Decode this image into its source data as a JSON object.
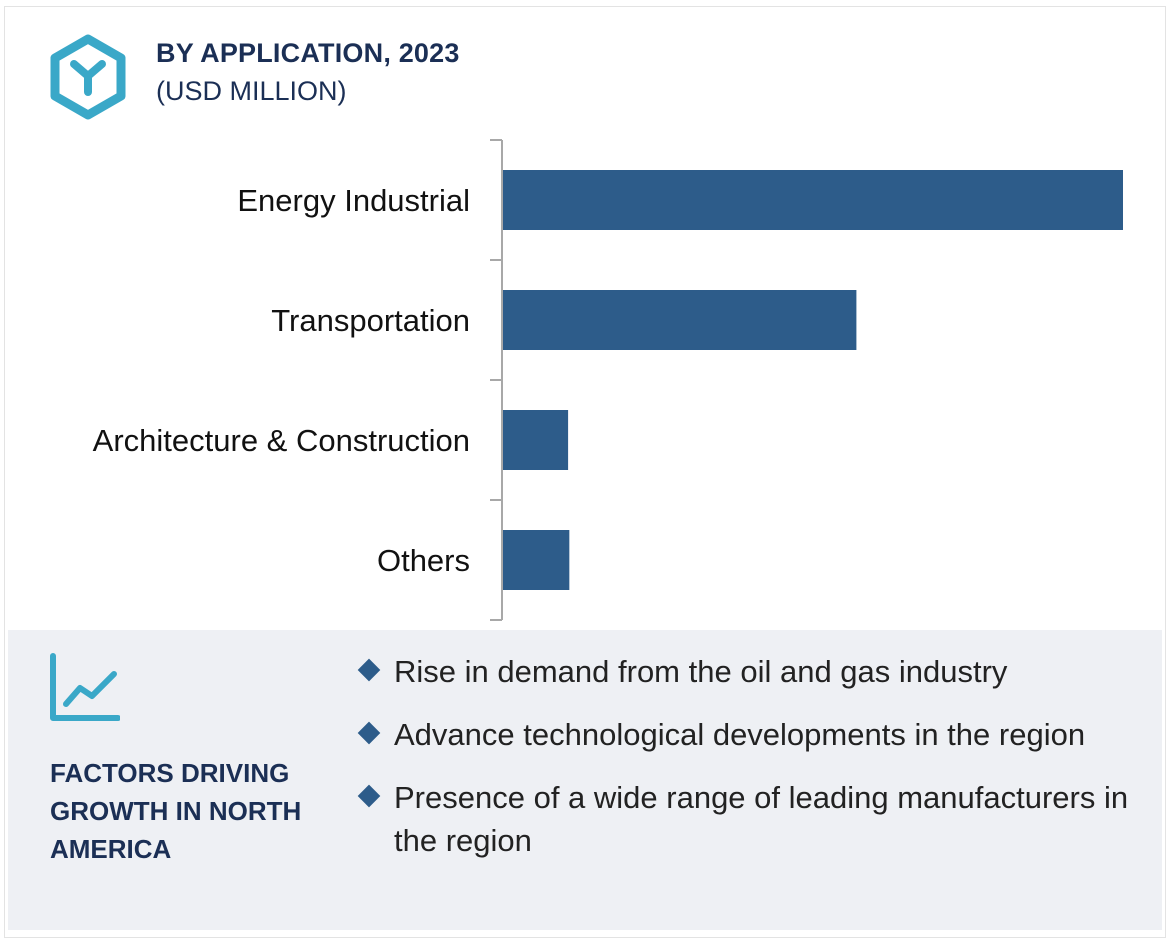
{
  "header": {
    "title": "BY APPLICATION, 2023",
    "subtitle": "(USD MILLION)",
    "icon": "hexagon-y-icon",
    "icon_color": "#3aa8c8"
  },
  "chart_data": {
    "type": "bar",
    "orientation": "horizontal",
    "categories": [
      "Energy Industrial",
      "Transportation",
      "Architecture & Construction",
      "Others"
    ],
    "values": [
      100,
      57,
      10.5,
      10.7
    ],
    "title": "BY APPLICATION, 2023",
    "xlabel": "",
    "ylabel": "",
    "xlim": [
      0,
      100
    ],
    "grid": false,
    "bar_color": "#2d5c8a"
  },
  "factors": {
    "icon": "trend-line-icon",
    "heading": "FACTORS DRIVING GROWTH IN NORTH AMERICA",
    "bullets": [
      "Rise in demand from the oil and gas industry",
      "Advance technological developments in the region",
      "Presence of a wide range of leading manufacturers in the region"
    ],
    "background": "#eef0f4"
  }
}
